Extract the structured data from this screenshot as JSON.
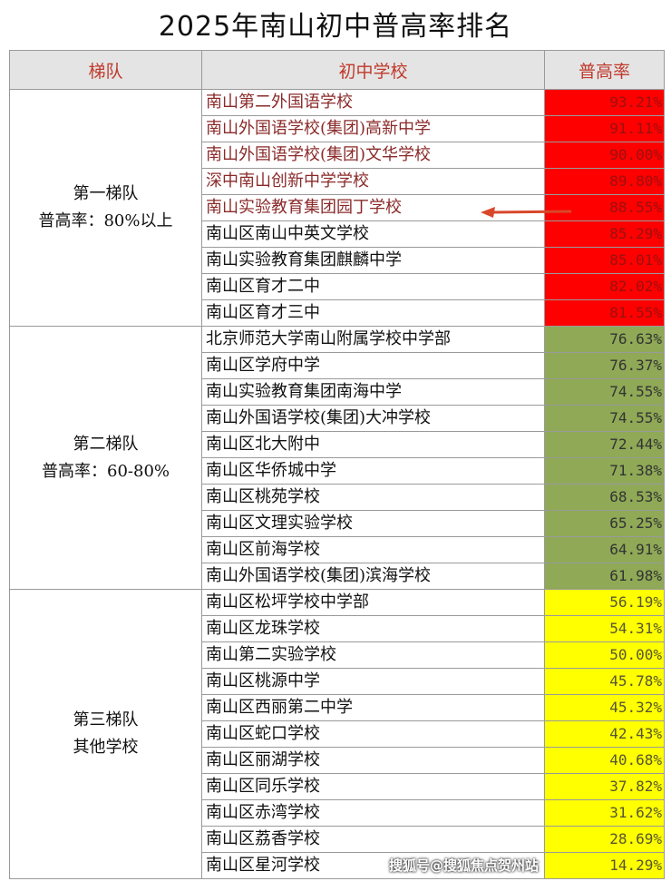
{
  "title": "2025年南山初中普高率排名",
  "headers": {
    "tier": "梯队",
    "school": "初中学校",
    "rate": "普高率"
  },
  "colors": {
    "tier1": "#ff0000",
    "tier2": "#8fa956",
    "tier3": "#ffff00",
    "header_text": "#c0392b",
    "arrow": "#d9472b"
  },
  "tiers": [
    {
      "name": "第一梯队",
      "desc": "普高率：80%以上",
      "fill": "#ff0000",
      "value_color": "#9b1010",
      "rows": [
        {
          "school": "南山第二外国语学校",
          "rate": "93.21%",
          "highlight": true
        },
        {
          "school": "南山外国语学校(集团)高新中学",
          "rate": "91.11%",
          "highlight": true
        },
        {
          "school": "南山外国语学校(集团)文华学校",
          "rate": "90.00%",
          "highlight": true
        },
        {
          "school": "深中南山创新中学学校",
          "rate": "89.80%",
          "highlight": true
        },
        {
          "school": "南山实验教育集团园丁学校",
          "rate": "88.55%",
          "highlight": true
        },
        {
          "school": "南山区南山中英文学校",
          "rate": "85.29%"
        },
        {
          "school": "南山实验教育集团麒麟中学",
          "rate": "85.01%"
        },
        {
          "school": "南山区育才二中",
          "rate": "82.02%"
        },
        {
          "school": "南山区育才三中",
          "rate": "81.55%"
        }
      ]
    },
    {
      "name": "第二梯队",
      "desc": "普高率：60-80%",
      "fill": "#8fa956",
      "value_color": "#333333",
      "rows": [
        {
          "school": "北京师范大学南山附属学校中学部",
          "rate": "76.63%"
        },
        {
          "school": "南山区学府中学",
          "rate": "76.37%"
        },
        {
          "school": "南山实验教育集团南海中学",
          "rate": "74.55%"
        },
        {
          "school": "南山外国语学校(集团)大冲学校",
          "rate": "74.55%"
        },
        {
          "school": "南山区北大附中",
          "rate": "72.44%"
        },
        {
          "school": "南山区华侨城中学",
          "rate": "71.38%"
        },
        {
          "school": "南山区桃苑学校",
          "rate": "68.53%"
        },
        {
          "school": "南山区文理实验学校",
          "rate": "65.25%"
        },
        {
          "school": "南山区前海学校",
          "rate": "64.91%"
        },
        {
          "school": "南山外国语学校(集团)滨海学校",
          "rate": "61.98%"
        }
      ]
    },
    {
      "name": "第三梯队",
      "desc": "其他学校",
      "fill": "#ffff00",
      "value_color": "#555533",
      "rows": [
        {
          "school": "南山区松坪学校中学部",
          "rate": "56.19%"
        },
        {
          "school": "南山区龙珠学校",
          "rate": "54.31%"
        },
        {
          "school": "南山第二实验学校",
          "rate": "50.00%"
        },
        {
          "school": "南山区桃源中学",
          "rate": "45.78%"
        },
        {
          "school": "南山区西丽第二中学",
          "rate": "45.32%"
        },
        {
          "school": "南山区蛇口学校",
          "rate": "42.43%"
        },
        {
          "school": "南山区丽湖学校",
          "rate": "40.68%"
        },
        {
          "school": "南山区同乐学校",
          "rate": "37.82%"
        },
        {
          "school": "南山区赤湾学校",
          "rate": "31.62%"
        },
        {
          "school": "南山区荔香学校",
          "rate": "28.69%"
        },
        {
          "school": "南山区星河学校",
          "rate": "14.29%"
        }
      ]
    }
  ],
  "watermark": "搜狐号@搜狐焦点贺州站"
}
